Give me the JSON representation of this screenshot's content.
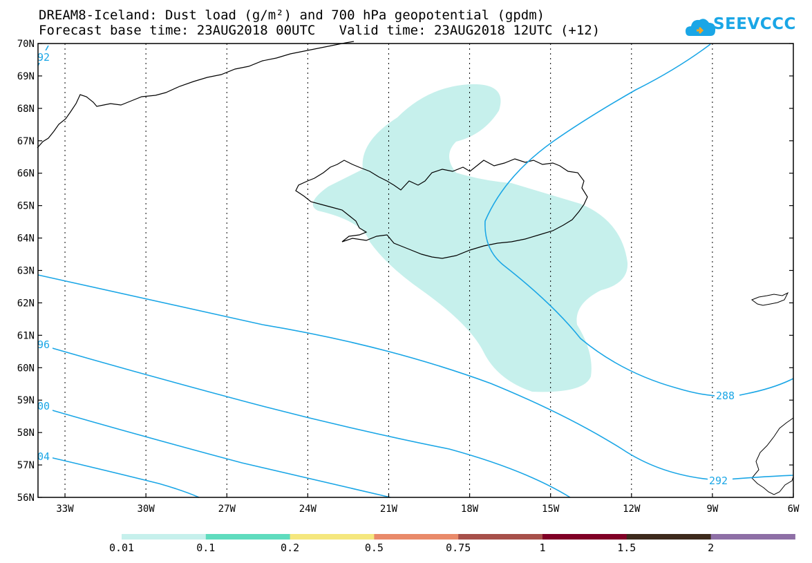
{
  "title": {
    "line1": "DREAM8-Iceland: Dust load (g/m²) and 700 hPa geopotential (gpdm)",
    "line2": "Forecast base time: 23AUG2018 00UTC   Valid time: 23AUG2018 12UTC (+12)"
  },
  "logo": {
    "text": "SEEVCCC",
    "icon": "cloud-icon"
  },
  "map": {
    "lon_range": [
      -34,
      -6
    ],
    "lat_range": [
      56,
      70
    ],
    "lat_labels": [
      "70N",
      "69N",
      "68N",
      "67N",
      "66N",
      "65N",
      "64N",
      "63N",
      "62N",
      "61N",
      "60N",
      "59N",
      "58N",
      "57N",
      "56N"
    ],
    "lon_labels": [
      "33W",
      "30W",
      "27W",
      "24W",
      "21W",
      "18W",
      "15W",
      "12W",
      "9W",
      "6W"
    ],
    "contour_labels": [
      "92",
      "96",
      "00",
      "04",
      "288",
      "292"
    ],
    "dust_color": "#c6f0ec",
    "contour_color": "#1aa6e6"
  },
  "colorbar": {
    "colors": [
      "#c6f0ec",
      "#5fdcbe",
      "#f5e77e",
      "#e98a6a",
      "#a7504a",
      "#800026",
      "#3d2a1c",
      "#8e6fa6"
    ],
    "labels": [
      "0.01",
      "0.1",
      "0.2",
      "0.5",
      "0.75",
      "1",
      "1.5",
      "2"
    ]
  }
}
